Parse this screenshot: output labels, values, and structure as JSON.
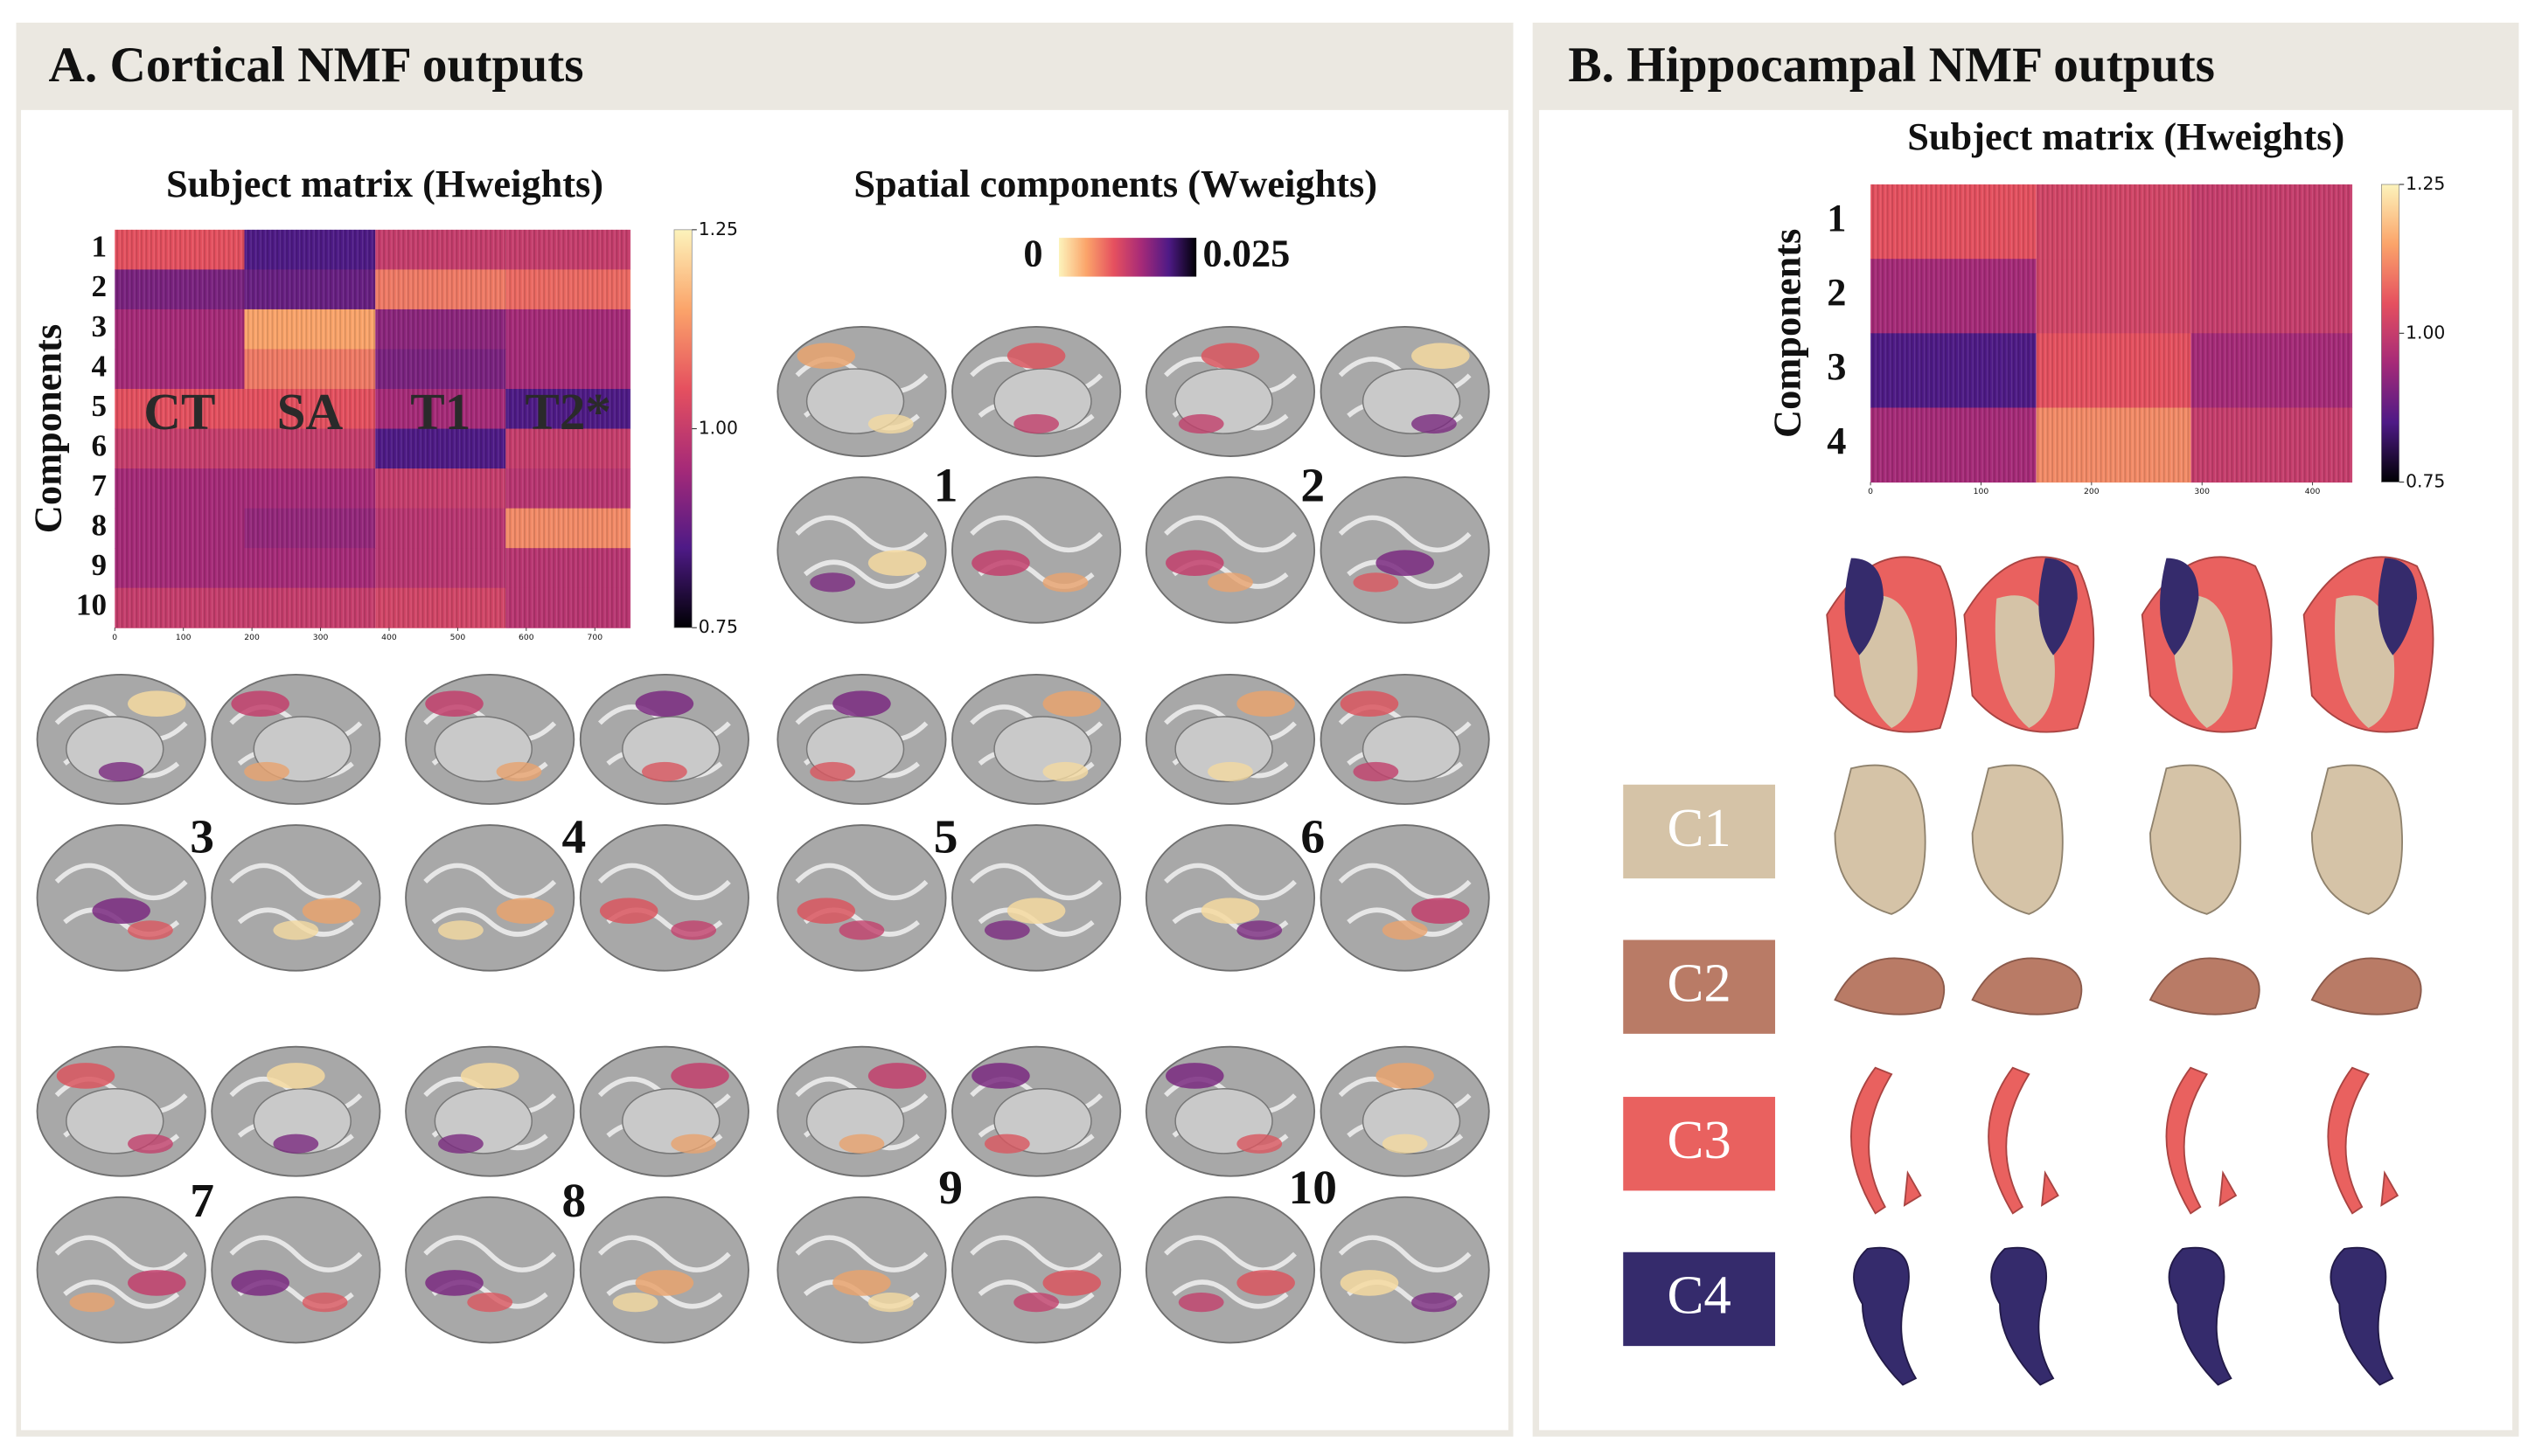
{
  "panel_a": {
    "title": "A. Cortical NMF outputs"
  },
  "panel_b": {
    "title": "B. Hippocampal NMF outputs",
    "legend": [
      {
        "label": "C1",
        "color": "#d5c3a7"
      },
      {
        "label": "C2",
        "color": "#b97b66"
      },
      {
        "label": "C3",
        "color": "#e9615f"
      },
      {
        "label": "C4",
        "color": "#352b6c"
      }
    ]
  },
  "spatial_components": {
    "title": "Spatial components (Wweights)",
    "clim": [
      0,
      0.025
    ],
    "cticks": [
      0,
      0.025
    ],
    "colormap": [
      "#fcf3bb",
      "#fba46a",
      "#e5505f",
      "#a62a78",
      "#4e1a86",
      "#000004"
    ],
    "components": [
      "1",
      "2",
      "3",
      "4",
      "5",
      "6",
      "7",
      "8",
      "9",
      "10"
    ]
  },
  "chart_data": [
    {
      "type": "heatmap",
      "title": "Subject matrix (Hweights)",
      "ylabel": "Components",
      "rows": [
        "1",
        "2",
        "3",
        "4",
        "5",
        "6",
        "7",
        "8",
        "9",
        "10"
      ],
      "groups": [
        "CT",
        "SA",
        "T1",
        "T2*"
      ],
      "group_edges": [
        0,
        189,
        380,
        570,
        752
      ],
      "values": [
        [
          1.05,
          0.85,
          1.0,
          1.0
        ],
        [
          0.9,
          0.88,
          1.1,
          1.08
        ],
        [
          0.95,
          1.15,
          0.92,
          0.95
        ],
        [
          0.95,
          1.1,
          0.9,
          0.95
        ],
        [
          1.05,
          1.05,
          0.95,
          0.85
        ],
        [
          1.0,
          1.0,
          0.85,
          1.0
        ],
        [
          0.95,
          0.95,
          1.0,
          0.98
        ],
        [
          0.95,
          0.93,
          0.98,
          1.12
        ],
        [
          0.95,
          0.95,
          0.98,
          0.98
        ],
        [
          1.0,
          1.0,
          1.02,
          0.98
        ]
      ],
      "xlim": [
        0,
        752
      ],
      "xticks": [
        0,
        100,
        200,
        300,
        400,
        500,
        600,
        700
      ],
      "clim": [
        0.75,
        1.25
      ],
      "cticks": [
        0.75,
        {
          "value": 1,
          "label": "1.00"
        },
        1.25
      ],
      "colormap": [
        "#000004",
        "#4e1a86",
        "#a62a78",
        "#e5505f",
        "#fba46a",
        "#fcf3bb"
      ]
    },
    {
      "type": "heatmap",
      "title": "Subject matrix (Hweights)",
      "ylabel": "Components",
      "rows": [
        "1",
        "2",
        "3",
        "4"
      ],
      "group_edges": [
        0,
        150,
        290,
        436
      ],
      "values": [
        [
          1.05,
          1.02,
          1.0
        ],
        [
          0.95,
          1.02,
          1.0
        ],
        [
          0.85,
          1.05,
          0.95
        ],
        [
          0.95,
          1.12,
          1.0
        ]
      ],
      "xlim": [
        0,
        436
      ],
      "xticks": [
        0,
        100,
        200,
        300,
        400
      ],
      "clim": [
        0.75,
        1.25
      ],
      "cticks": [
        0.75,
        {
          "value": 1,
          "label": "1.00"
        },
        1.25
      ],
      "colormap": [
        "#000004",
        "#4e1a86",
        "#a62a78",
        "#e5505f",
        "#fba46a",
        "#fcf3bb"
      ]
    }
  ]
}
